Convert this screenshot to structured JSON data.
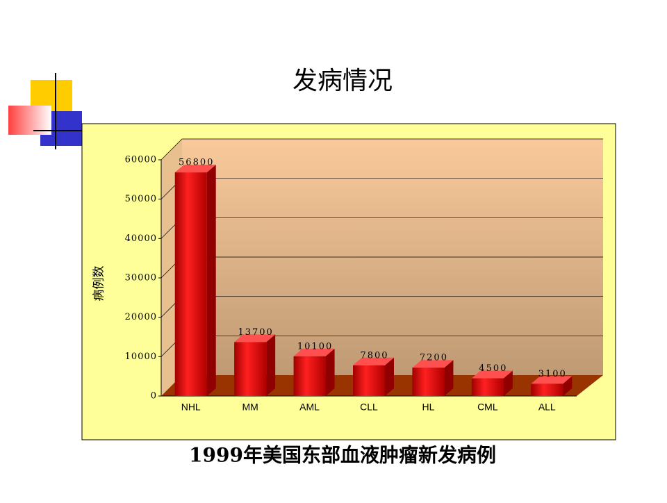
{
  "chart_data": {
    "type": "bar3d",
    "title": "发病情况",
    "caption": "1999年美国东部血液肿瘤新发病例",
    "y_label": "病例数",
    "categories": [
      "NHL",
      "MM",
      "AML",
      "CLL",
      "HL",
      "CML",
      "ALL"
    ],
    "values": [
      56800,
      13700,
      10100,
      7800,
      7200,
      4500,
      3100
    ],
    "color": "#e00000",
    "ylim": [
      0,
      60000
    ],
    "yticks": [
      0,
      10000,
      20000,
      30000,
      40000,
      50000,
      60000
    ],
    "grid": true
  }
}
